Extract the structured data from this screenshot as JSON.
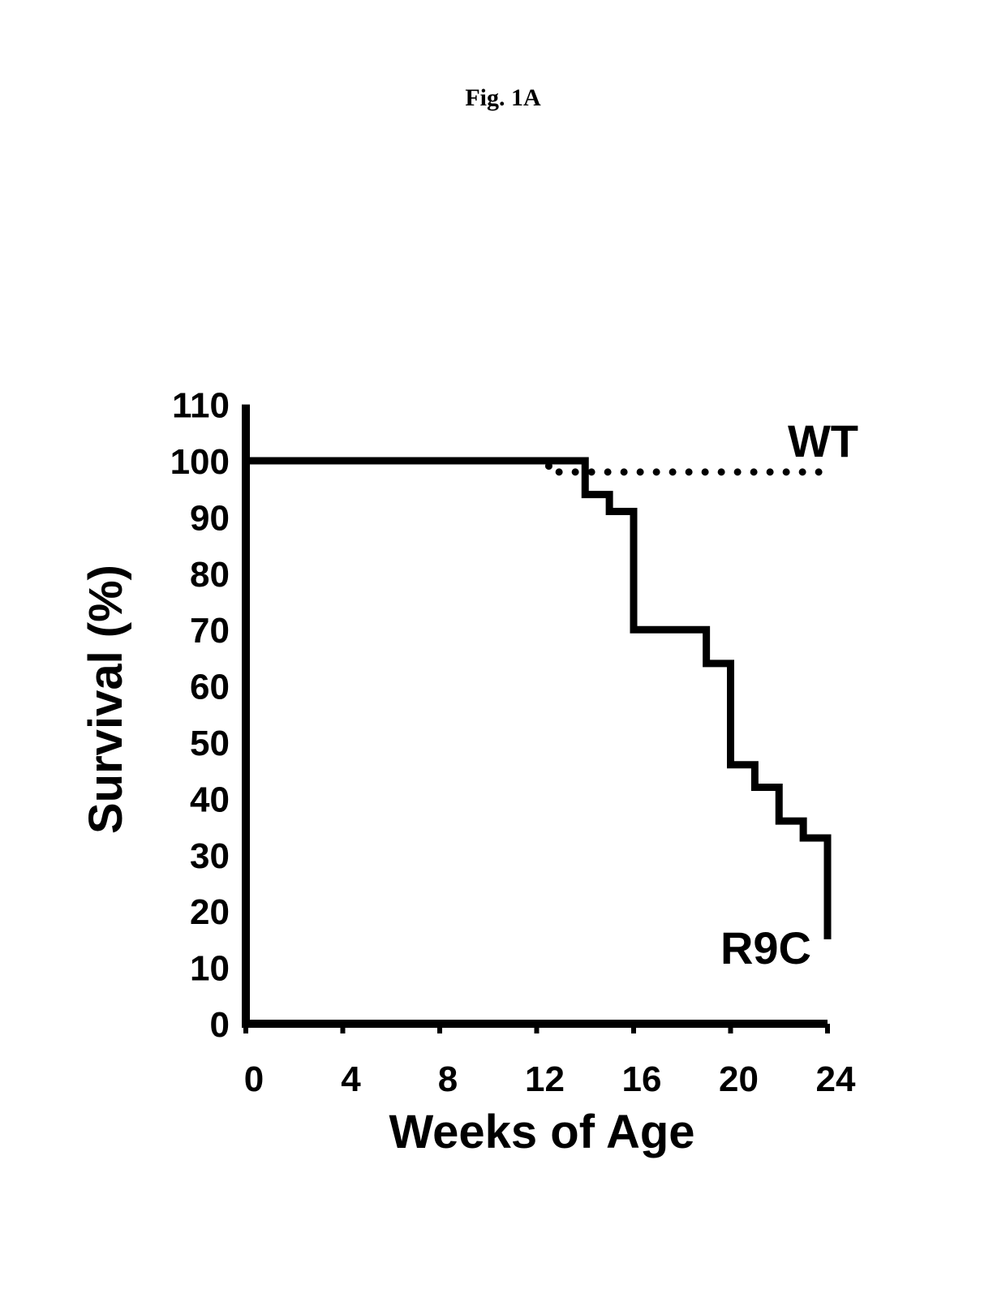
{
  "figure": {
    "title": "Fig. 1A"
  },
  "chart_data": {
    "type": "line",
    "xlabel": "Weeks of Age",
    "ylabel": "Survival (%)",
    "xlim": [
      0,
      24
    ],
    "ylim": [
      0,
      110
    ],
    "x_ticks": [
      "0",
      "4",
      "8",
      "12",
      "16",
      "20",
      "24"
    ],
    "y_ticks": [
      "0",
      "10",
      "20",
      "30",
      "40",
      "50",
      "60",
      "70",
      "80",
      "90",
      "100",
      "110"
    ],
    "grid": false,
    "legend": "none",
    "series": [
      {
        "name": "WT",
        "style": "dotted",
        "color": "#000000",
        "step": true,
        "x": [
          0,
          12.5,
          12.5,
          24
        ],
        "y": [
          100,
          100,
          98,
          98
        ]
      },
      {
        "name": "R9C",
        "style": "solid",
        "color": "#000000",
        "step": true,
        "x": [
          0,
          14,
          14,
          15,
          15,
          16,
          16,
          19,
          19,
          20,
          20,
          21,
          21,
          22,
          22,
          23,
          23,
          24,
          24
        ],
        "y": [
          100,
          100,
          94,
          94,
          91,
          91,
          70,
          70,
          64,
          64,
          46,
          46,
          42,
          42,
          36,
          36,
          33,
          33,
          15
        ]
      }
    ]
  }
}
